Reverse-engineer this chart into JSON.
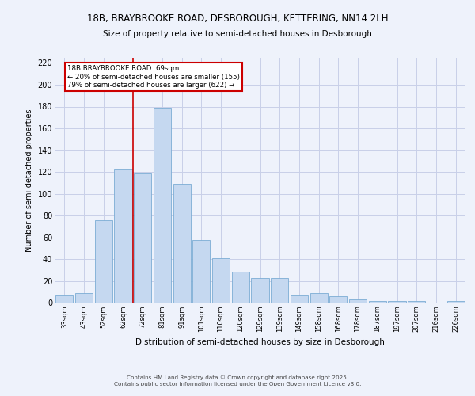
{
  "title1": "18B, BRAYBROOKE ROAD, DESBOROUGH, KETTERING, NN14 2LH",
  "title2": "Size of property relative to semi-detached houses in Desborough",
  "xlabel": "Distribution of semi-detached houses by size in Desborough",
  "ylabel": "Number of semi-detached properties",
  "categories": [
    "33sqm",
    "43sqm",
    "52sqm",
    "62sqm",
    "72sqm",
    "81sqm",
    "91sqm",
    "101sqm",
    "110sqm",
    "120sqm",
    "129sqm",
    "139sqm",
    "149sqm",
    "158sqm",
    "168sqm",
    "178sqm",
    "187sqm",
    "197sqm",
    "207sqm",
    "216sqm",
    "226sqm"
  ],
  "values": [
    7,
    9,
    76,
    122,
    119,
    179,
    109,
    58,
    41,
    29,
    23,
    23,
    7,
    9,
    6,
    3,
    2,
    2,
    2,
    0,
    2
  ],
  "bar_color": "#c5d8f0",
  "bar_edge_color": "#7bacd4",
  "red_line_x": 3.5,
  "property_line_label": "18B BRAYBROOKE ROAD: 69sqm",
  "smaller_pct": "20%",
  "smaller_count": 155,
  "larger_pct": "79%",
  "larger_count": 622,
  "annotation_box_color": "#cc0000",
  "red_line_color": "#cc0000",
  "ylim": [
    0,
    225
  ],
  "yticks": [
    0,
    20,
    40,
    60,
    80,
    100,
    120,
    140,
    160,
    180,
    200,
    220
  ],
  "bg_color": "#eef2fb",
  "grid_color": "#c8cfe8",
  "footer": "Contains HM Land Registry data © Crown copyright and database right 2025.\nContains public sector information licensed under the Open Government Licence v3.0."
}
